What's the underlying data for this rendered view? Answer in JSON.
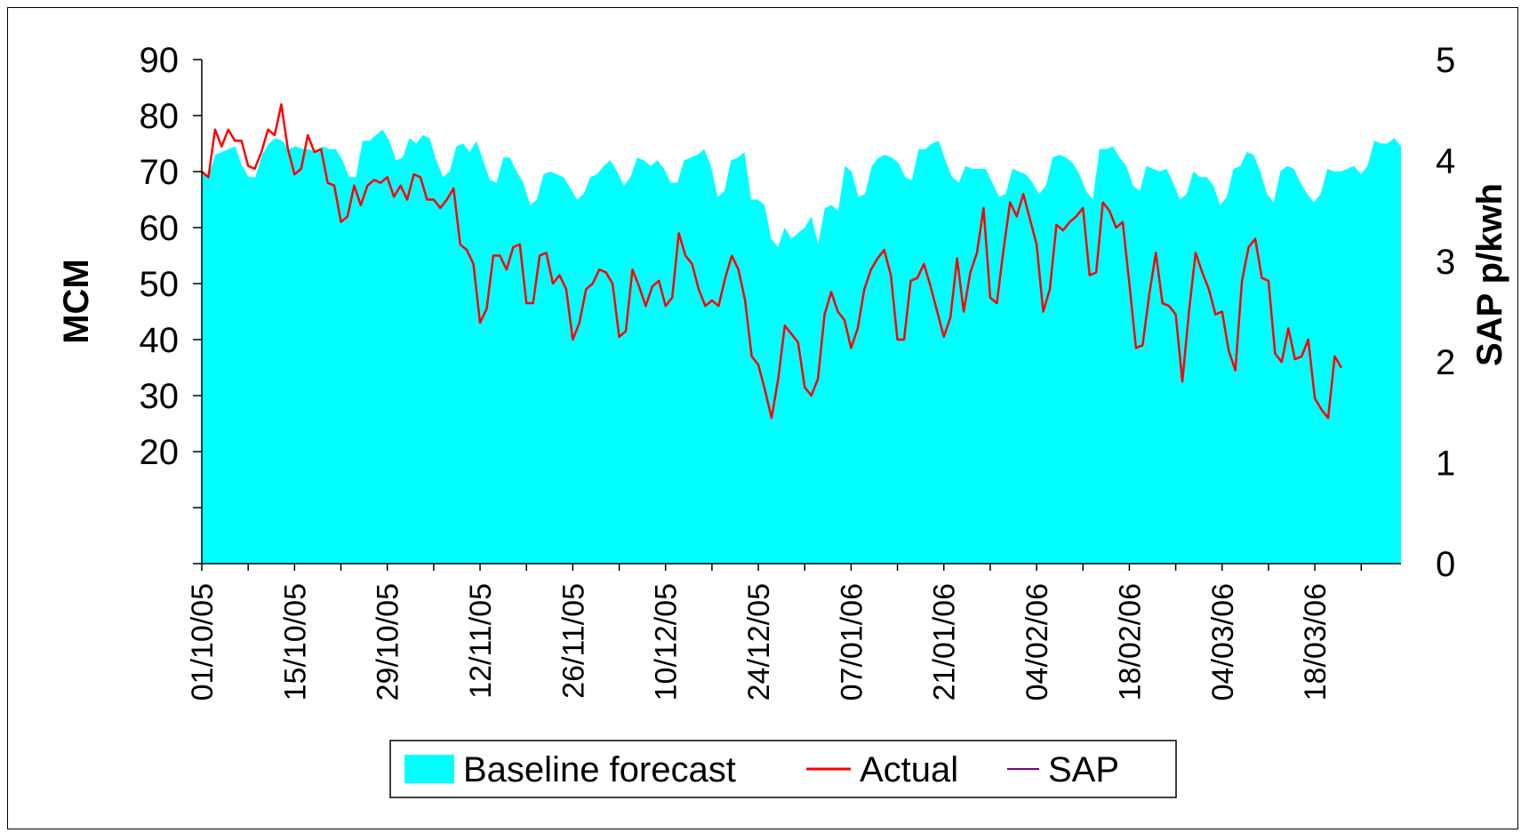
{
  "chart_data": {
    "type": "area",
    "ylabel": "MCM",
    "y2label": "SAP p/kwh",
    "ylim": [
      0,
      90
    ],
    "y2lim": [
      0,
      5
    ],
    "y_ticks": [
      "20",
      "30",
      "40",
      "50",
      "60",
      "70",
      "80",
      "90"
    ],
    "y2_ticks": [
      "0",
      "1",
      "2",
      "3",
      "4",
      "5"
    ],
    "x_tick_labels": [
      "01/10/05",
      "15/10/05",
      "29/10/05",
      "12/11/05",
      "26/11/05",
      "10/12/05",
      "24/12/05",
      "07/01/06",
      "21/01/06",
      "04/02/06",
      "18/02/06",
      "04/03/06",
      "18/03/06"
    ],
    "x_tick_days": [
      0,
      14,
      28,
      42,
      56,
      70,
      84,
      98,
      112,
      126,
      140,
      154,
      168
    ],
    "x_day_range": [
      0,
      181
    ],
    "legend": [
      {
        "label": "Baseline forecast",
        "color": "#00FFFF",
        "style": "area"
      },
      {
        "label": "Actual",
        "color": "#FF0000",
        "style": "line"
      },
      {
        "label": "SAP",
        "color": "#800080",
        "style": "line"
      }
    ],
    "series": [
      {
        "name": "Baseline forecast",
        "type": "area",
        "color": "#00FFFF",
        "values": [
          70,
          69,
          73,
          73.5,
          74,
          74.5,
          71,
          69,
          69,
          73,
          75,
          76,
          75.5,
          74,
          74.5,
          74,
          74,
          73.5,
          74.5,
          74,
          74,
          72,
          69,
          69,
          75.5,
          75.5,
          76.5,
          77.5,
          75.5,
          72,
          72.5,
          76,
          75,
          76.5,
          76,
          72,
          69,
          70,
          74.5,
          75,
          73.5,
          75.5,
          72,
          68.5,
          68,
          72.5,
          72.5,
          70,
          68,
          64,
          65,
          69.5,
          70,
          69.5,
          69,
          67,
          65,
          66,
          69,
          69.5,
          71,
          72,
          70,
          67.5,
          69,
          72.5,
          72,
          71,
          72,
          70.5,
          68,
          68,
          72,
          72.5,
          73,
          74,
          71,
          65.5,
          66.5,
          72,
          72.5,
          73.5,
          65,
          65,
          64,
          58,
          56.5,
          60,
          58,
          59,
          60,
          62,
          57,
          63.5,
          64,
          63,
          71,
          70,
          65.5,
          66,
          71,
          72.5,
          73,
          72.5,
          71.5,
          69,
          68.5,
          74,
          74,
          75,
          75.5,
          72,
          69,
          68,
          71,
          70.5,
          70.5,
          70.5,
          68,
          65.5,
          66,
          70.5,
          70,
          69.5,
          68,
          66,
          67.5,
          72.5,
          73,
          72.5,
          71.5,
          69.5,
          66.5,
          65,
          74,
          74,
          74.5,
          72.5,
          71,
          67.5,
          66.5,
          71,
          70.5,
          70,
          70.5,
          68,
          65,
          66,
          70,
          69,
          69,
          67.5,
          64,
          65.5,
          70.5,
          71,
          73.5,
          73,
          70,
          66,
          64.5,
          70,
          71,
          70.5,
          68,
          66,
          64.5,
          66,
          70.5,
          70,
          70,
          70.5,
          71,
          69.5,
          71,
          75.5,
          75,
          75,
          76,
          74.5
        ]
      },
      {
        "name": "Actual",
        "type": "line",
        "color": "#FF0000",
        "values": [
          70,
          69,
          77.5,
          74.5,
          77.5,
          75.5,
          75.5,
          71,
          70.5,
          73.5,
          77.5,
          76.5,
          82,
          74,
          69.5,
          70.5,
          76.5,
          73.5,
          74,
          68,
          67.5,
          61,
          62,
          67.5,
          64,
          67.5,
          68.5,
          68,
          69,
          65.5,
          67.5,
          65,
          69.5,
          69,
          65,
          65,
          63.5,
          65,
          67,
          57,
          56,
          53.5,
          43,
          45.5,
          55,
          55,
          52.5,
          56.5,
          57,
          46.5,
          46.5,
          55,
          55.5,
          50,
          51.5,
          49,
          40,
          43,
          49,
          50,
          52.5,
          52,
          50,
          40.5,
          41.5,
          52.5,
          49.5,
          46,
          49.5,
          50.5,
          46,
          47.5,
          59,
          55,
          53.5,
          49,
          46,
          47,
          46,
          51,
          55,
          52.5,
          47,
          37,
          35.5,
          31,
          26,
          33,
          42.5,
          41,
          39.5,
          31.5,
          30,
          33,
          44.5,
          48.5,
          45,
          43.5,
          38.5,
          42,
          49,
          52.5,
          54.5,
          56,
          51.5,
          40,
          40,
          50.5,
          51,
          53.5,
          49.5,
          45,
          40.5,
          44,
          54.5,
          45,
          52,
          55.5,
          63.5,
          47.5,
          46.5,
          56,
          64.5,
          62,
          66,
          61.5,
          57,
          45,
          49,
          60.5,
          59.5,
          61,
          62,
          63.5,
          51.5,
          52,
          64.5,
          63,
          60,
          61,
          50,
          38.5,
          39,
          48,
          55.5,
          46.5,
          46,
          44.5,
          32.5,
          45,
          55.5,
          52,
          49,
          44.5,
          45,
          38,
          34.5,
          50.5,
          56.5,
          58,
          51,
          50.5,
          37.5,
          36,
          42,
          36.5,
          37,
          40,
          29.5,
          27.5,
          26,
          37,
          35
        ]
      },
      {
        "name": "SAP",
        "type": "line",
        "color": "#800080",
        "values": []
      }
    ]
  }
}
